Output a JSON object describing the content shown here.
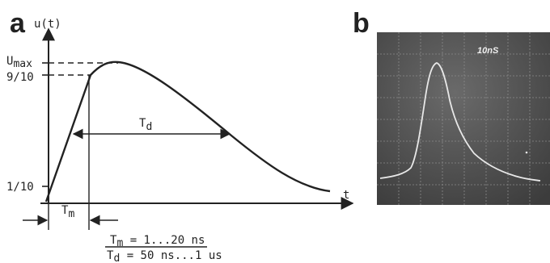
{
  "panel_a": {
    "letter": "a",
    "y_axis_label": "u(t)",
    "x_axis_label": "t",
    "umax_main": "U",
    "umax_sub": "max",
    "nine_tenths": "9/10",
    "one_tenth": "1/10",
    "td_main": "T",
    "td_sub": "d",
    "tm_main": "T",
    "tm_sub": "m",
    "formula_tm_main": "T",
    "formula_tm_sub": "m",
    "formula_tm_rest": " = 1...20 ns",
    "formula_td_main": "T",
    "formula_td_sub": "d",
    "formula_td_rest": " = 50  ns...1 us"
  },
  "panel_b": {
    "letter": "b",
    "scope_label": "10nS"
  },
  "colors": {
    "ink": "#222222",
    "scope_bg": "#4a4a4a",
    "scope_grid": "#8a8a8a",
    "trace": "#e8e8e8"
  }
}
